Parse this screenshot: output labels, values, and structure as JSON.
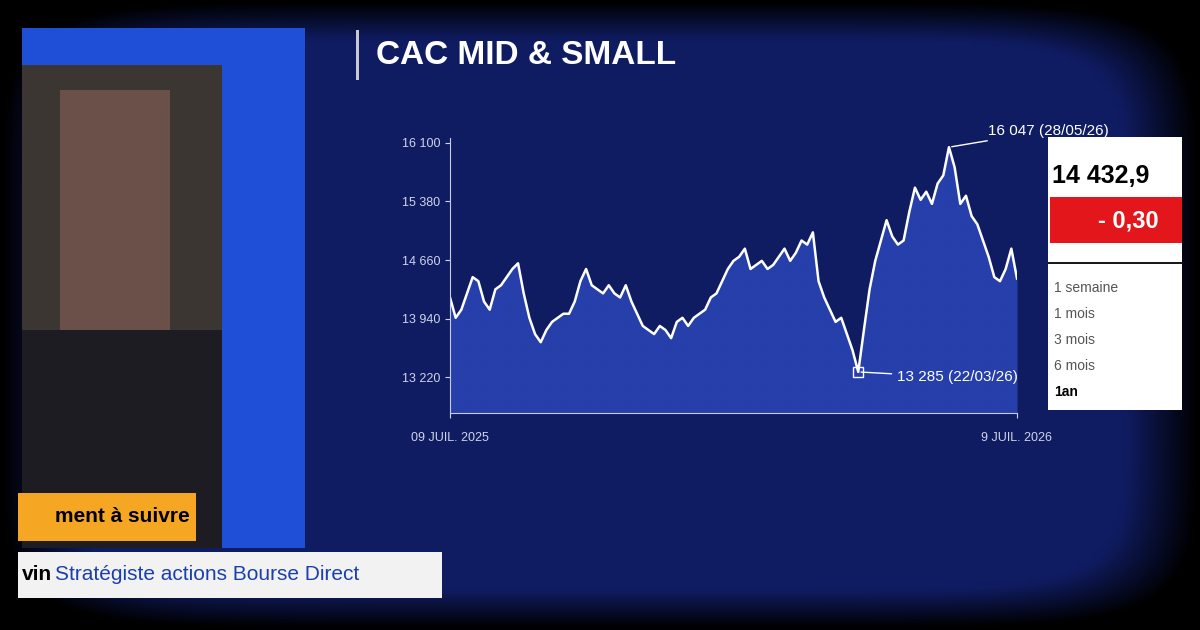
{
  "chart_data": {
    "type": "line",
    "title": "CAC MID & SMALL",
    "categories": [
      "09 JUIL. 2025",
      null,
      null,
      null,
      null,
      null,
      null,
      null,
      null,
      null,
      null,
      null,
      null,
      null,
      null,
      null,
      null,
      null,
      null,
      null,
      null,
      null,
      null,
      null,
      null,
      null,
      null,
      null,
      null,
      null,
      null,
      null,
      null,
      null,
      null,
      null,
      null,
      null,
      null,
      null,
      null,
      null,
      null,
      null,
      null,
      null,
      null,
      null,
      null,
      null,
      null,
      null,
      null,
      null,
      null,
      null,
      null,
      null,
      null,
      null,
      null,
      null,
      null,
      null,
      null,
      null,
      null,
      null,
      null,
      null,
      null,
      null,
      null,
      null,
      null,
      null,
      null,
      null,
      null,
      null,
      null,
      null,
      null,
      null,
      null,
      null,
      null,
      null,
      null,
      null,
      null,
      null,
      null,
      null,
      null,
      null,
      null,
      null,
      null,
      null,
      "9 JUIL. 2026"
    ],
    "series": [
      {
        "name": "CAC MID & SMALL",
        "color": "#ffffff",
        "values": [
          14200,
          13950,
          14050,
          14250,
          14450,
          14400,
          14150,
          14050,
          14300,
          14350,
          14450,
          14550,
          14620,
          14250,
          13950,
          13750,
          13650,
          13800,
          13900,
          13950,
          14000,
          14000,
          14150,
          14400,
          14550,
          14350,
          14300,
          14250,
          14350,
          14250,
          14200,
          14350,
          14150,
          14000,
          13850,
          13800,
          13750,
          13850,
          13800,
          13700,
          13900,
          13950,
          13850,
          13950,
          14000,
          14050,
          14200,
          14250,
          14400,
          14550,
          14650,
          14700,
          14800,
          14550,
          14600,
          14650,
          14550,
          14600,
          14700,
          14800,
          14650,
          14750,
          14900,
          14850,
          15000,
          14400,
          14200,
          14050,
          13900,
          13950,
          13750,
          13550,
          13285,
          13800,
          14300,
          14650,
          14900,
          15150,
          14950,
          14850,
          14900,
          15250,
          15550,
          15400,
          15500,
          15350,
          15600,
          15700,
          16047,
          15800,
          15350,
          15450,
          15200,
          15100,
          14900,
          14700,
          14450,
          14400,
          14550,
          14800,
          14432.9
        ]
      }
    ],
    "ylim": [
      12780,
      16160
    ],
    "yticks": [
      {
        "value": 13220,
        "label": "13 220"
      },
      {
        "value": 13940,
        "label": "13 940"
      },
      {
        "value": 14660,
        "label": "14 660"
      },
      {
        "value": 15380,
        "label": "15 380"
      },
      {
        "value": 16100,
        "label": "16 100"
      }
    ],
    "grid": false,
    "annotations": {
      "high": "16 047 (28/05/26)",
      "low": "13 285 (22/03/26)"
    },
    "price": "14 432,9",
    "change": "- 0,30",
    "periods": [
      "1 semaine",
      "1 mois",
      "3 mois",
      "6 mois",
      "1an"
    ],
    "selected_period": "1an",
    "banner": "ment à suivre",
    "speaker": {
      "name": "vin",
      "role": "Stratégiste actions Bourse Direct"
    }
  }
}
